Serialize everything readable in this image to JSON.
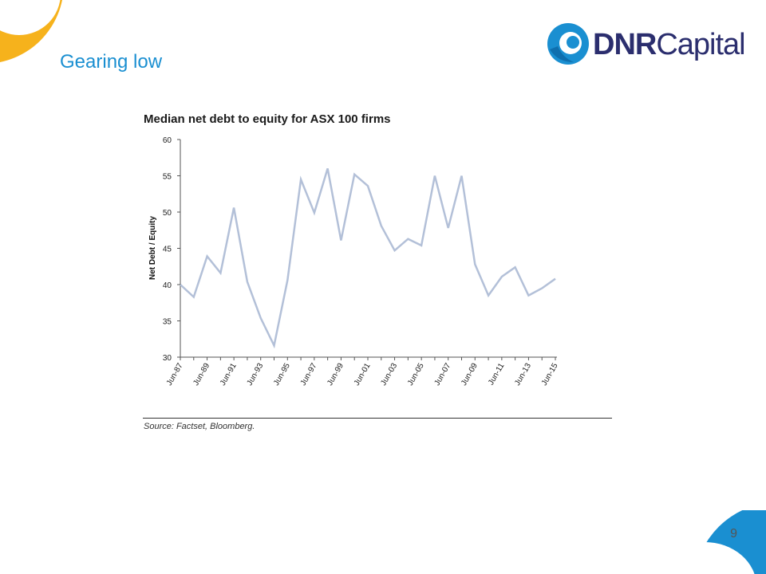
{
  "slide": {
    "title": "Gearing low",
    "page_number": "9"
  },
  "logo": {
    "text_bold": "DNR",
    "text_regular": "Capital",
    "color": "#2b2e6e",
    "mark_color": "#1a8fd1"
  },
  "source": "Source:  Factset, Bloomberg.",
  "colors": {
    "accent": "#1a8fd1",
    "corner_top_left": "#f6b21c",
    "series_line": "#b3c0d8"
  },
  "chart_data": {
    "type": "line",
    "title": "Median net debt to equity for ASX 100 firms",
    "ylabel": "Net Debt / Equity",
    "xlabel": "",
    "ylim": [
      30,
      60
    ],
    "yticks": [
      30,
      35,
      40,
      45,
      50,
      55,
      60
    ],
    "x": [
      "Jun-87",
      "Jun-88",
      "Jun-89",
      "Jun-90",
      "Jun-91",
      "Jun-92",
      "Jun-93",
      "Jun-94",
      "Jun-95",
      "Jun-96",
      "Jun-97",
      "Jun-98",
      "Jun-99",
      "Jun-00",
      "Jun-01",
      "Jun-02",
      "Jun-03",
      "Jun-04",
      "Jun-05",
      "Jun-06",
      "Jun-07",
      "Jun-08",
      "Jun-09",
      "Jun-10",
      "Jun-11",
      "Jun-12",
      "Jun-13",
      "Jun-14",
      "Jun-15"
    ],
    "xtick_labels": [
      "Jun-87",
      "Jun-89",
      "Jun-91",
      "Jun-93",
      "Jun-95",
      "Jun-97",
      "Jun-99",
      "Jun-01",
      "Jun-03",
      "Jun-05",
      "Jun-07",
      "Jun-09",
      "Jun-11",
      "Jun-13",
      "Jun-15"
    ],
    "series": [
      {
        "values": [
          40.0,
          38.3,
          43.9,
          41.6,
          50.6,
          40.4,
          35.4,
          31.6,
          40.6,
          54.5,
          49.9,
          56.0,
          46.1,
          55.2,
          53.6,
          48.1,
          44.7,
          46.3,
          45.4,
          55.0,
          47.8,
          55.0,
          42.8,
          38.5,
          41.1,
          42.4,
          38.5,
          39.5,
          40.8
        ]
      }
    ],
    "grid": false,
    "legend": "none"
  }
}
